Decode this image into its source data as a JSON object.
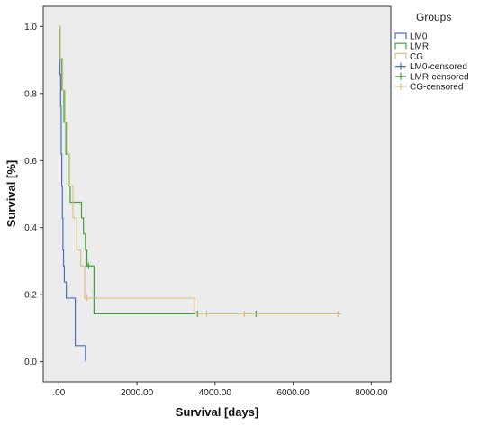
{
  "chart_data": {
    "type": "line",
    "step": true,
    "xlabel": "Survival [days]",
    "ylabel": "Survival [%]",
    "xlim": [
      -400,
      8500
    ],
    "ylim": [
      -0.06,
      1.06
    ],
    "xticks": [
      0,
      2000,
      4000,
      6000,
      8000
    ],
    "xtick_labels": [
      ".00",
      "2000.00",
      "4000.00",
      "6000.00",
      "8000.00"
    ],
    "yticks": [
      0.0,
      0.2,
      0.4,
      0.6,
      0.8,
      1.0
    ],
    "ytick_labels": [
      "0.0",
      "0.2",
      "0.4",
      "0.6",
      "0.8",
      "1.0"
    ],
    "grid": false,
    "legend_title": "Groups",
    "legend_position": "top-right outside",
    "series": [
      {
        "name": "LM0",
        "color": "#4a6fc0",
        "x": [
          0,
          30,
          45,
          60,
          75,
          90,
          105,
          120,
          140,
          160,
          190,
          260,
          420,
          680
        ],
        "y": [
          1.0,
          0.857,
          0.762,
          0.619,
          0.524,
          0.429,
          0.333,
          0.286,
          0.238,
          0.238,
          0.19,
          0.19,
          0.048,
          0.0
        ],
        "censored_x": []
      },
      {
        "name": "LMR",
        "color": "#3aa43a",
        "x": [
          0,
          30,
          80,
          130,
          180,
          240,
          290,
          340,
          580,
          630,
          680,
          720,
          790,
          900,
          3550,
          5050
        ],
        "y": [
          1.0,
          0.905,
          0.81,
          0.714,
          0.619,
          0.524,
          0.476,
          0.476,
          0.429,
          0.381,
          0.333,
          0.286,
          0.286,
          0.143,
          0.143,
          0.143
        ],
        "censored_x": [
          760,
          3550,
          5050
        ]
      },
      {
        "name": "CG",
        "color": "#d9c189",
        "x": [
          0,
          40,
          100,
          160,
          220,
          280,
          360,
          460,
          560,
          660,
          3480,
          7150
        ],
        "y": [
          1.0,
          0.905,
          0.81,
          0.714,
          0.619,
          0.524,
          0.429,
          0.333,
          0.286,
          0.19,
          0.143,
          0.143
        ],
        "censored_x": [
          720,
          3780,
          4750,
          7150
        ]
      }
    ],
    "legend": [
      {
        "label": "LM0",
        "series": 0,
        "kind": "line"
      },
      {
        "label": "LMR",
        "series": 1,
        "kind": "line"
      },
      {
        "label": "CG",
        "series": 2,
        "kind": "line"
      },
      {
        "label": "LM0-censored",
        "series": 0,
        "kind": "censor"
      },
      {
        "label": "LMR-censored",
        "series": 1,
        "kind": "censor"
      },
      {
        "label": "CG-censored",
        "series": 2,
        "kind": "censor"
      }
    ],
    "colors": {
      "plot_background": "#ececec",
      "frame": "#333333"
    }
  }
}
